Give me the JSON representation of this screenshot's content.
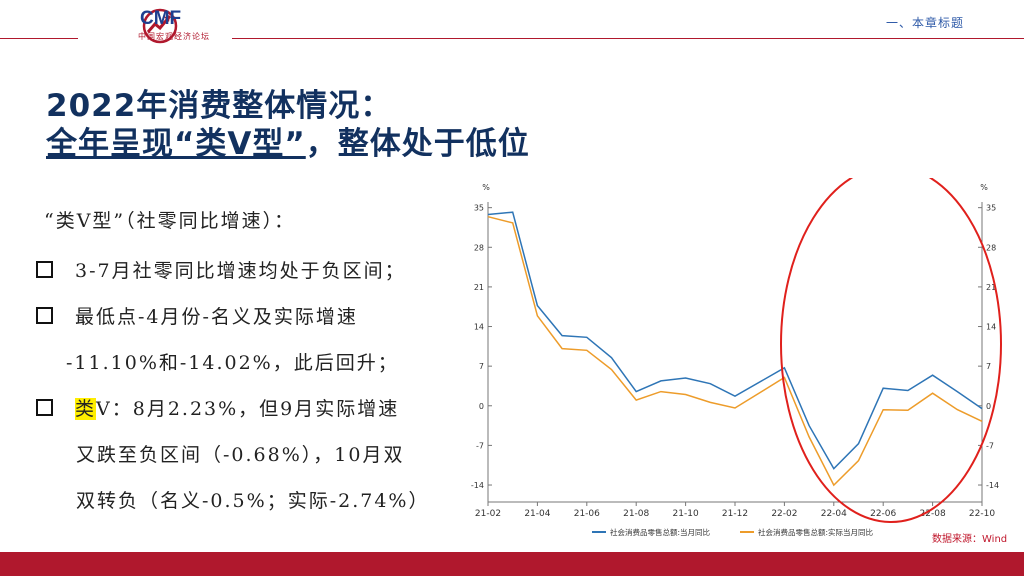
{
  "header": {
    "logo_text": "CMF",
    "logo_sub": "中国宏观经济论坛",
    "section_label": "一、本章标题"
  },
  "title": {
    "line1": "2022年消费整体情况：",
    "line2_part1": "全年呈现“类V型”",
    "line2_part2": "，整体处于低位"
  },
  "bullets": {
    "intro": "“类V型”（社零同比增速）：",
    "b1": "3-7月社零同比增速均处于负区间；",
    "b2": "最低点-4月份-名义及实际增速",
    "b2_cont": "-11.10%和-14.02%，此后回升；",
    "b3_hl": "类",
    "b3": "V：8月2.23%，但9月实际增速",
    "b3_cont": "又跌至负区间（-0.68%），10月双",
    "b3_cont2": "双转负（名义-0.5%；实际-2.74%）"
  },
  "chart_data": {
    "type": "line",
    "unit_left": "%",
    "unit_right": "%",
    "ylim": [
      -17,
      36
    ],
    "yticks": [
      35,
      28,
      21,
      14,
      7,
      0,
      -7,
      -14
    ],
    "x_labels": [
      "21-02",
      "21-04",
      "21-06",
      "21-08",
      "21-10",
      "21-12",
      "22-02",
      "22-04",
      "22-06",
      "22-08",
      "22-10"
    ],
    "x": [
      "21-02",
      "21-03",
      "21-04",
      "21-05",
      "21-06",
      "21-07",
      "21-08",
      "21-09",
      "21-10",
      "21-11",
      "21-12",
      "22-02",
      "22-03",
      "22-04",
      "22-05",
      "22-06",
      "22-07",
      "22-08",
      "22-09",
      "22-10"
    ],
    "series": [
      {
        "name": "社会消费品零售总额:当月同比",
        "color": "#2e75b6",
        "values": [
          33.8,
          34.2,
          17.7,
          12.4,
          12.1,
          8.5,
          2.5,
          4.4,
          4.9,
          3.9,
          1.7,
          6.7,
          -3.5,
          -11.1,
          -6.7,
          3.1,
          2.7,
          5.4,
          2.5,
          -0.5
        ]
      },
      {
        "name": "社会消费品零售总额:实际当月同比",
        "color": "#ed9c2a",
        "values": [
          33.4,
          32.3,
          15.9,
          10.1,
          9.8,
          6.4,
          1.0,
          2.5,
          2.0,
          0.6,
          -0.4,
          5.0,
          -5.5,
          -14.02,
          -9.7,
          -0.7,
          -0.8,
          2.23,
          -0.68,
          -2.74
        ]
      }
    ],
    "source": "数据来源：Wind",
    "grid": false,
    "legend": "bottom"
  },
  "colors": {
    "brand_red": "#b0182d",
    "title_blue": "#12315f",
    "circle": "#e0201c"
  }
}
